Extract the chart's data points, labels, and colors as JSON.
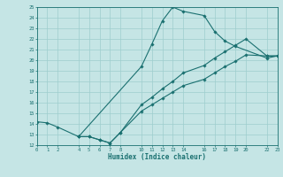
{
  "xlabel": "Humidex (Indice chaleur)",
  "xlim": [
    0,
    23
  ],
  "ylim": [
    12,
    25
  ],
  "xticks": [
    0,
    1,
    2,
    4,
    5,
    6,
    7,
    8,
    10,
    11,
    12,
    13,
    14,
    16,
    17,
    18,
    19,
    20,
    22,
    23
  ],
  "yticks": [
    12,
    13,
    14,
    15,
    16,
    17,
    18,
    19,
    20,
    21,
    22,
    23,
    24,
    25
  ],
  "bg_color": "#c5e5e5",
  "grid_color": "#9ecece",
  "line_color": "#1a7070",
  "marker": "D",
  "lines": [
    {
      "x": [
        0,
        1,
        2,
        4,
        10,
        11,
        12,
        13,
        14,
        16,
        17,
        18,
        19,
        22,
        23
      ],
      "y": [
        14.2,
        14.1,
        13.7,
        12.8,
        19.4,
        21.5,
        23.7,
        25.0,
        24.6,
        24.2,
        22.7,
        21.8,
        21.3,
        20.2,
        20.4
      ]
    },
    {
      "x": [
        4,
        5,
        6,
        7,
        8,
        10,
        11,
        12,
        13,
        14,
        16,
        17,
        18,
        19,
        20,
        22,
        23
      ],
      "y": [
        12.8,
        12.8,
        12.5,
        12.2,
        13.2,
        15.8,
        16.5,
        17.3,
        18.0,
        18.8,
        19.5,
        20.2,
        20.8,
        21.4,
        22.0,
        20.4,
        20.4
      ]
    },
    {
      "x": [
        4,
        5,
        6,
        7,
        8,
        10,
        11,
        12,
        13,
        14,
        16,
        17,
        18,
        19,
        20,
        22,
        23
      ],
      "y": [
        12.8,
        12.8,
        12.5,
        12.2,
        13.2,
        15.2,
        15.8,
        16.4,
        17.0,
        17.6,
        18.2,
        18.8,
        19.4,
        19.9,
        20.5,
        20.4,
        20.4
      ]
    }
  ]
}
